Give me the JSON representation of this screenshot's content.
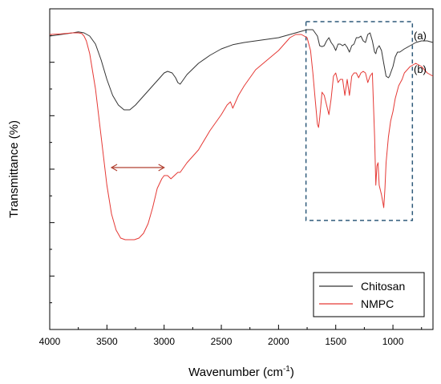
{
  "chart_data": {
    "type": "line",
    "xlabel": "Wavenumber (cm",
    "xlabel_sup": "-1",
    "xlabel_end": ")",
    "ylabel": "Transmittance (%)",
    "xlim": [
      4000,
      650
    ],
    "ylim": [
      0,
      100
    ],
    "x_reversed": true,
    "y_tick_labels_shown": false,
    "x_ticks": [
      4000,
      3500,
      3000,
      2500,
      2000,
      1500,
      1000
    ],
    "x_tick_labels": [
      "4000",
      "3500",
      "3000",
      "2500",
      "2000",
      "1500",
      "1000"
    ],
    "y_ticks": [
      0,
      16.67,
      33.33,
      50,
      66.67,
      83.33,
      100
    ],
    "legend_position": "bottom-right",
    "series": [
      {
        "name": "Chitosan",
        "label": "(a)",
        "color": "#333333",
        "x": [
          4000,
          3900,
          3800,
          3750,
          3700,
          3650,
          3600,
          3550,
          3500,
          3450,
          3400,
          3350,
          3300,
          3250,
          3200,
          3150,
          3100,
          3050,
          3000,
          2970,
          2930,
          2900,
          2880,
          2860,
          2800,
          2700,
          2600,
          2500,
          2400,
          2300,
          2200,
          2100,
          2000,
          1900,
          1800,
          1750,
          1700,
          1660,
          1640,
          1620,
          1600,
          1580,
          1560,
          1540,
          1520,
          1500,
          1480,
          1460,
          1440,
          1420,
          1400,
          1380,
          1360,
          1340,
          1320,
          1300,
          1280,
          1260,
          1240,
          1220,
          1200,
          1180,
          1160,
          1150,
          1140,
          1120,
          1100,
          1080,
          1060,
          1040,
          1030,
          1020,
          1000,
          980,
          960,
          940,
          900,
          850,
          800,
          750,
          700,
          650
        ],
        "y": [
          91.5,
          92,
          92.5,
          92.8,
          92.5,
          91.5,
          89,
          84,
          78,
          73,
          70,
          68.5,
          68.5,
          70,
          72,
          74,
          76,
          78,
          80,
          80.5,
          80,
          78.5,
          77,
          76.5,
          79.5,
          83,
          85.5,
          87.5,
          88.8,
          89.5,
          90,
          90.5,
          91,
          92,
          93,
          93.5,
          93.5,
          91.5,
          88.5,
          88.2,
          88.5,
          90,
          91,
          89.5,
          88.5,
          87,
          89,
          89,
          88.5,
          89,
          88,
          86.5,
          88.5,
          89,
          91,
          91,
          91.5,
          90,
          89.5,
          92,
          92.5,
          90,
          86.5,
          86,
          87.5,
          88.5,
          87,
          83,
          79,
          78.5,
          79,
          80,
          82,
          85,
          86.5,
          86.5,
          87.5,
          88.5,
          89.5,
          90,
          90,
          89.5
        ]
      },
      {
        "name": "NMPC",
        "label": "(b)",
        "color": "#e53935",
        "x": [
          4000,
          3900,
          3800,
          3750,
          3720,
          3700,
          3680,
          3650,
          3600,
          3550,
          3500,
          3460,
          3420,
          3380,
          3340,
          3300,
          3260,
          3220,
          3180,
          3140,
          3100,
          3060,
          3020,
          3000,
          2970,
          2940,
          2910,
          2880,
          2860,
          2800,
          2700,
          2600,
          2500,
          2450,
          2420,
          2400,
          2350,
          2300,
          2200,
          2100,
          2000,
          1950,
          1900,
          1850,
          1800,
          1750,
          1720,
          1700,
          1680,
          1660,
          1650,
          1640,
          1630,
          1620,
          1600,
          1580,
          1560,
          1540,
          1520,
          1500,
          1480,
          1460,
          1440,
          1420,
          1400,
          1380,
          1360,
          1340,
          1320,
          1300,
          1280,
          1260,
          1240,
          1220,
          1200,
          1180,
          1160,
          1150,
          1140,
          1130,
          1120,
          1100,
          1090,
          1080,
          1070,
          1060,
          1040,
          1020,
          1000,
          980,
          950,
          920,
          900,
          850,
          800,
          750,
          700,
          650
        ],
        "y": [
          92,
          92.2,
          92.5,
          92.5,
          92.3,
          91.5,
          90,
          86,
          75,
          60,
          45,
          36,
          31,
          28.5,
          28,
          28,
          28,
          28.5,
          30,
          33,
          38,
          44,
          47,
          48,
          48,
          47,
          48,
          49,
          49,
          52,
          56,
          62,
          67,
          70,
          71,
          69,
          73,
          76,
          81,
          84,
          87,
          89,
          91,
          92,
          92,
          91,
          87,
          80,
          72,
          64,
          63,
          66,
          70,
          74,
          73,
          70,
          67,
          72,
          79,
          80,
          77,
          78,
          78,
          73,
          78,
          73,
          79,
          80,
          80,
          78.5,
          80,
          80.5,
          80,
          77,
          79,
          80,
          60,
          45,
          51,
          52,
          45,
          42,
          40,
          38,
          44,
          52,
          60,
          65,
          68,
          72,
          76,
          78,
          80,
          82,
          83,
          82,
          80,
          79
        ]
      }
    ],
    "annotations": [
      {
        "type": "double-arrow",
        "x1": 3460,
        "x2": 3000,
        "y": 50.5,
        "color": "#b04030"
      },
      {
        "type": "dashed-box",
        "x1": 1760,
        "x2": 830,
        "y1": 34,
        "y2": 96,
        "color": "#2e5a7a"
      }
    ]
  }
}
